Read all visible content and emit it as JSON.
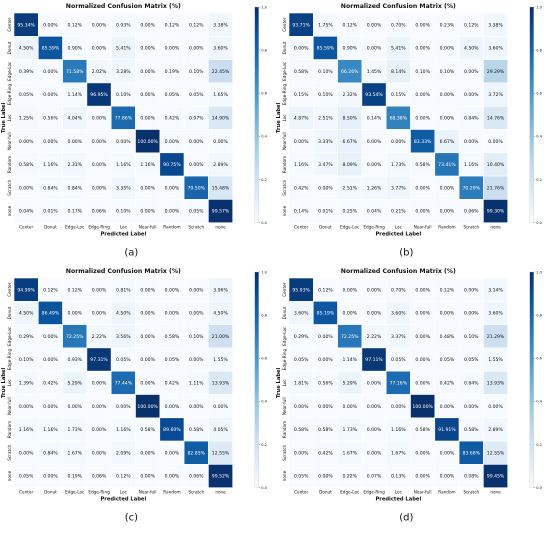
{
  "chart_data": [
    {
      "type": "heatmap",
      "panel_label": "(a)",
      "title": "Normalized Confusion Matrix (%)",
      "xlabel": "Predicted Label",
      "ylabel": "True Label",
      "categories": [
        "Center",
        "Donut",
        "Edge-Loc",
        "Edge-Ring",
        "Loc",
        "Near-full",
        "Random",
        "Scratch",
        "none"
      ],
      "value_format": "%",
      "colorbar": {
        "min": 0.0,
        "max": 1.0,
        "ticks": [
          "0.0",
          "0.2",
          "0.4",
          "0.6",
          "0.8",
          "1.0"
        ]
      },
      "matrix": [
        [
          95.34,
          0.0,
          0.12,
          0.0,
          0.93,
          0.0,
          0.12,
          0.12,
          3.38
        ],
        [
          4.5,
          85.59,
          0.9,
          0.0,
          5.41,
          0.0,
          0.0,
          0.0,
          3.6
        ],
        [
          0.39,
          0.0,
          71.58,
          2.02,
          3.28,
          0.0,
          0.19,
          0.1,
          22.45
        ],
        [
          0.05,
          0.0,
          1.14,
          96.95,
          0.1,
          0.0,
          0.05,
          0.05,
          1.65
        ],
        [
          1.25,
          0.56,
          4.04,
          0.0,
          77.86,
          0.0,
          0.42,
          0.97,
          14.9
        ],
        [
          0.0,
          0.0,
          0.0,
          0.0,
          0.0,
          100.0,
          0.0,
          0.0,
          0.0
        ],
        [
          0.58,
          1.16,
          2.31,
          0.0,
          1.16,
          1.16,
          90.75,
          0.0,
          2.89
        ],
        [
          0.0,
          0.84,
          0.84,
          0.0,
          3.35,
          0.0,
          0.0,
          79.5,
          15.48
        ],
        [
          0.04,
          0.01,
          0.17,
          0.06,
          0.1,
          0.0,
          0.0,
          0.05,
          99.57
        ]
      ]
    },
    {
      "type": "heatmap",
      "panel_label": "(b)",
      "title": "Normalized Confusion Matrix (%)",
      "xlabel": "Predicted Label",
      "ylabel": "True Label",
      "categories": [
        "Center",
        "Donut",
        "Edge-Loc",
        "Edge-Ring",
        "Loc",
        "Near-full",
        "Random",
        "Scratch",
        "none"
      ],
      "value_format": "%",
      "colorbar": {
        "min": 0.0,
        "max": 1.0,
        "ticks": [
          "0.0",
          "0.2",
          "0.4",
          "0.6",
          "0.8",
          "1.0"
        ]
      },
      "matrix": [
        [
          93.71,
          1.75,
          0.12,
          0.0,
          0.7,
          0.0,
          0.23,
          0.12,
          3.38
        ],
        [
          0.0,
          85.59,
          0.9,
          0.0,
          5.41,
          0.0,
          0.0,
          4.5,
          3.6
        ],
        [
          0.58,
          0.1,
          66.26,
          1.45,
          8.14,
          0.1,
          0.1,
          0.0,
          29.29
        ],
        [
          0.15,
          0.1,
          2.32,
          93.54,
          0.15,
          0.0,
          0.0,
          0.0,
          3.72
        ],
        [
          4.87,
          2.51,
          8.5,
          0.14,
          68.38,
          0.0,
          0.0,
          0.84,
          14.76
        ],
        [
          0.0,
          3.33,
          6.67,
          0.0,
          0.0,
          83.33,
          6.67,
          0.0,
          0.0
        ],
        [
          1.16,
          3.47,
          8.09,
          0.0,
          1.73,
          0.58,
          73.41,
          1.16,
          10.4
        ],
        [
          0.42,
          0.0,
          2.51,
          1.26,
          3.77,
          0.0,
          0.0,
          70.29,
          21.76
        ],
        [
          0.14,
          0.01,
          0.25,
          0.04,
          0.21,
          0.0,
          0.0,
          0.06,
          99.3
        ]
      ]
    },
    {
      "type": "heatmap",
      "panel_label": "(c)",
      "title": "Normalized Confusion Matrix (%)",
      "xlabel": "Predicted Label",
      "ylabel": "True Label",
      "categories": [
        "Center",
        "Donut",
        "Edge-Loc",
        "Edge-Ring",
        "Loc",
        "Near-full",
        "Random",
        "Scratch",
        "none"
      ],
      "value_format": "%",
      "colorbar": {
        "min": 0.0,
        "max": 1.0,
        "ticks": [
          "0.0",
          "0.2",
          "0.4",
          "0.6",
          "0.8",
          "1.0"
        ]
      },
      "matrix": [
        [
          94.99,
          0.12,
          0.12,
          0.0,
          0.81,
          0.0,
          0.0,
          0.0,
          3.96
        ],
        [
          4.5,
          86.49,
          0.0,
          0.0,
          4.5,
          0.0,
          0.0,
          0.0,
          4.5
        ],
        [
          0.29,
          0.0,
          72.25,
          2.22,
          3.56,
          0.0,
          0.58,
          0.1,
          21.0
        ],
        [
          0.1,
          0.0,
          0.93,
          97.31,
          0.05,
          0.0,
          0.05,
          0.0,
          1.55
        ],
        [
          1.39,
          0.42,
          5.29,
          0.0,
          77.44,
          0.0,
          0.42,
          1.11,
          13.93
        ],
        [
          0.0,
          0.0,
          0.0,
          0.0,
          0.0,
          100.0,
          0.0,
          0.0,
          0.0
        ],
        [
          1.16,
          1.16,
          1.73,
          0.0,
          1.16,
          0.58,
          89.6,
          0.58,
          4.05
        ],
        [
          0.0,
          0.84,
          1.67,
          0.0,
          2.09,
          0.0,
          0.0,
          82.85,
          12.55
        ],
        [
          0.05,
          0.0,
          0.19,
          0.06,
          0.12,
          0.0,
          0.0,
          0.06,
          99.52
        ]
      ]
    },
    {
      "type": "heatmap",
      "panel_label": "(d)",
      "title": "Normalized Confusion Matrix (%)",
      "xlabel": "Predicted Label",
      "ylabel": "True Label",
      "categories": [
        "Center",
        "Donut",
        "Edge-Loc",
        "Edge-Ring",
        "Loc",
        "Near-full",
        "Random",
        "Scratch",
        "none"
      ],
      "value_format": "%",
      "colorbar": {
        "min": 0.0,
        "max": 1.0,
        "ticks": [
          "0.0",
          "0.2",
          "0.4",
          "0.6",
          "0.8",
          "1.0"
        ]
      },
      "matrix": [
        [
          95.93,
          0.12,
          0.0,
          0.0,
          0.7,
          0.0,
          0.12,
          0.0,
          3.14
        ],
        [
          3.6,
          85.19,
          0.0,
          0.0,
          3.6,
          0.0,
          0.0,
          0.0,
          3.6
        ],
        [
          0.29,
          0.0,
          72.25,
          2.22,
          3.37,
          0.0,
          0.48,
          0.1,
          21.29
        ],
        [
          0.05,
          0.0,
          1.14,
          97.11,
          0.05,
          0.0,
          0.05,
          0.05,
          1.55
        ],
        [
          1.81,
          0.56,
          5.29,
          0.0,
          77.16,
          0.0,
          0.42,
          0.84,
          13.93
        ],
        [
          0.0,
          0.0,
          0.0,
          0.0,
          0.0,
          100.0,
          0.0,
          0.0,
          0.0
        ],
        [
          0.58,
          0.58,
          1.73,
          0.0,
          1.16,
          0.58,
          91.91,
          0.58,
          2.89
        ],
        [
          0.0,
          0.42,
          1.67,
          0.0,
          1.67,
          0.0,
          0.0,
          83.68,
          12.55
        ],
        [
          0.05,
          0.0,
          0.22,
          0.07,
          0.13,
          0.0,
          0.0,
          0.08,
          99.45
        ]
      ]
    }
  ],
  "colors": {
    "low": "#f7fbff",
    "high": "#08306b",
    "grid": "#ffffff",
    "text_dark": "#111111",
    "text_light": "#ffffff"
  }
}
